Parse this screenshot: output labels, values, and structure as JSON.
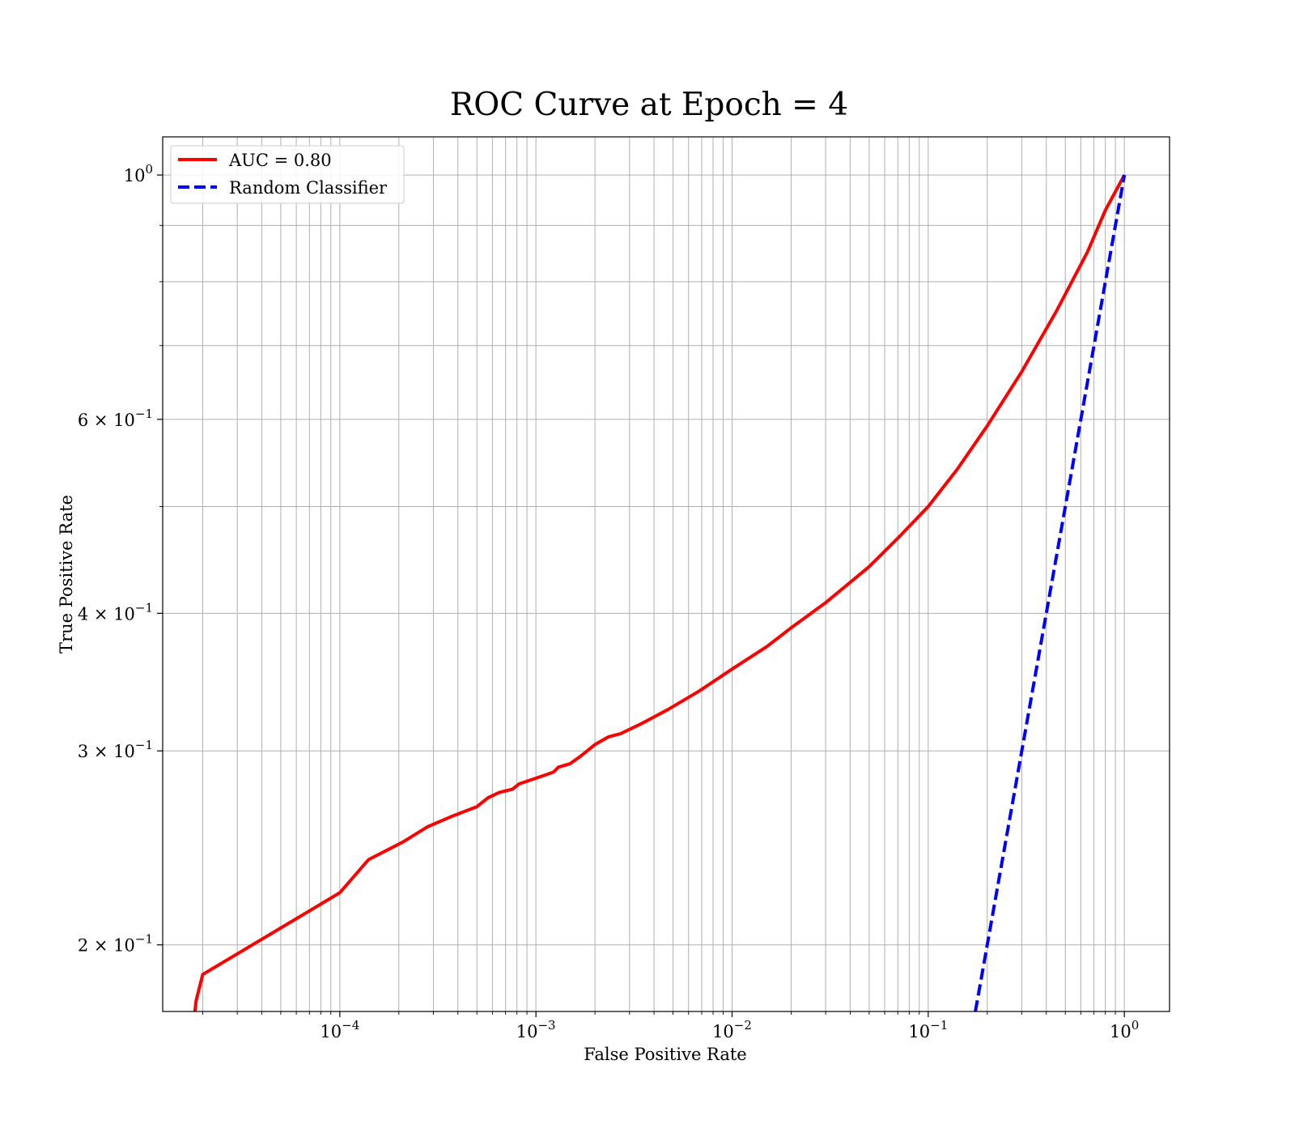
{
  "chart_data": {
    "type": "line",
    "title": "ROC Curve at Epoch = 4",
    "xlabel": "False Positive Rate",
    "ylabel": "True Positive Rate",
    "xscale": "log",
    "yscale": "log",
    "xlim": [
      1.25e-05,
      1.7
    ],
    "ylim": [
      0.174,
      1.083
    ],
    "grid": {
      "major": true,
      "minor": true
    },
    "legend_position": "top-left",
    "x_ticks": [
      {
        "value": 0.0001,
        "base": "10",
        "exp": "−4"
      },
      {
        "value": 0.001,
        "base": "10",
        "exp": "−3"
      },
      {
        "value": 0.01,
        "base": "10",
        "exp": "−2"
      },
      {
        "value": 0.1,
        "base": "10",
        "exp": "−1"
      },
      {
        "value": 1,
        "base": "10",
        "exp": "0"
      }
    ],
    "y_ticks": [
      {
        "value": 1,
        "mant": "",
        "base": "10",
        "exp": "0"
      },
      {
        "value": 0.6,
        "mant": "6 × ",
        "base": "10",
        "exp": "−1"
      },
      {
        "value": 0.4,
        "mant": "4 × ",
        "base": "10",
        "exp": "−1"
      },
      {
        "value": 0.3,
        "mant": "3 × ",
        "base": "10",
        "exp": "−1"
      },
      {
        "value": 0.2,
        "mant": "2 × ",
        "base": "10",
        "exp": "−1"
      }
    ],
    "series": [
      {
        "name": "AUC = 0.80",
        "color": "#ff0000",
        "style": "solid",
        "points": [
          [
            1.825e-05,
            0.174
          ],
          [
            1.85e-05,
            0.178
          ],
          [
            2e-05,
            0.188
          ],
          [
            0.0001,
            0.223
          ],
          [
            0.00014,
            0.239
          ],
          [
            0.00021,
            0.248
          ],
          [
            0.00028,
            0.256
          ],
          [
            0.00038,
            0.262
          ],
          [
            0.0005,
            0.267
          ],
          [
            0.00057,
            0.272
          ],
          [
            0.00065,
            0.275
          ],
          [
            0.00076,
            0.277
          ],
          [
            0.00082,
            0.28
          ],
          [
            0.0011,
            0.285
          ],
          [
            0.00123,
            0.287
          ],
          [
            0.0013,
            0.29
          ],
          [
            0.00149,
            0.292
          ],
          [
            0.0017,
            0.297
          ],
          [
            0.002,
            0.304
          ],
          [
            0.00235,
            0.309
          ],
          [
            0.0027,
            0.311
          ],
          [
            0.0035,
            0.318
          ],
          [
            0.0047,
            0.327
          ],
          [
            0.0068,
            0.34
          ],
          [
            0.01,
            0.356
          ],
          [
            0.015,
            0.373
          ],
          [
            0.02,
            0.388
          ],
          [
            0.03,
            0.409
          ],
          [
            0.05,
            0.441
          ],
          [
            0.07,
            0.468
          ],
          [
            0.1,
            0.5
          ],
          [
            0.14,
            0.54
          ],
          [
            0.2,
            0.592
          ],
          [
            0.3,
            0.663
          ],
          [
            0.45,
            0.752
          ],
          [
            0.65,
            0.852
          ],
          [
            0.8,
            0.929
          ],
          [
            1.0,
            1.0
          ]
        ]
      },
      {
        "name": "Random Classifier",
        "color": "#0000ff",
        "style": "dashed",
        "points": [
          [
            0.174,
            0.174
          ],
          [
            1.0,
            1.0
          ]
        ]
      }
    ]
  }
}
